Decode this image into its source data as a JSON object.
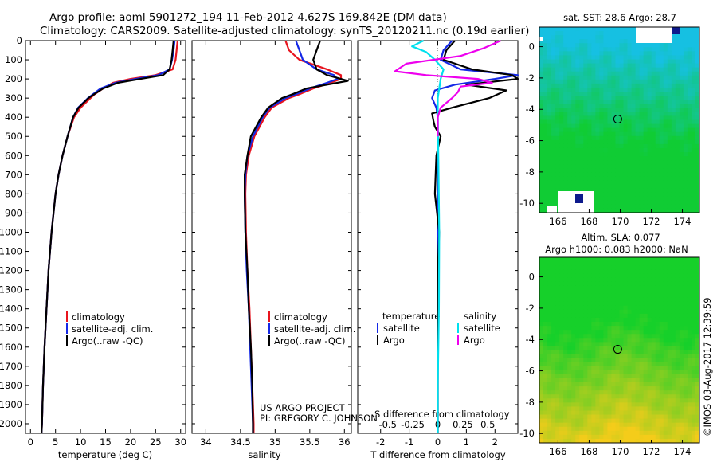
{
  "titles": {
    "line1": "Argo profile: aoml 5901272_194 11-Feb-2012 4.627S 169.842E (DM data)",
    "line2": "Climatology: CARS2009. Satellite-adjusted climatology: synTS_20120211.nc (0.19d earlier)"
  },
  "credits": {
    "project": "US ARGO PROJECT",
    "pi": "PI: GREGORY C. JOHNSON",
    "stamp": "©IMOS 03-Aug-2017 12:39:59"
  },
  "colors": {
    "climatology": "#e8141e",
    "satellite": "#1428e6",
    "argo": "#000000",
    "sat_s": "#00e0ee",
    "argo_s": "#ee00ee"
  },
  "chart_data": [
    {
      "id": "temperature",
      "type": "line",
      "xlabel": "temperature (deg C)",
      "ylabel": "",
      "xlim": [
        -1,
        31
      ],
      "ylim": [
        2050,
        0
      ],
      "xticks": [
        0,
        5,
        10,
        15,
        20,
        25,
        30
      ],
      "xtick_labels": [
        "0",
        "5",
        "10",
        "15",
        "20",
        "25",
        "30"
      ],
      "yticks": [
        0,
        100,
        200,
        300,
        400,
        500,
        600,
        700,
        800,
        900,
        1000,
        1100,
        1200,
        1300,
        1400,
        1500,
        1600,
        1700,
        1800,
        1900,
        2000
      ],
      "legend": [
        "climatology",
        "satellite-adj. clim.",
        "Argo(..raw -QC)"
      ],
      "series": [
        {
          "name": "climatology",
          "color": "#e8141e",
          "depth": [
            0,
            50,
            100,
            150,
            180,
            200,
            220,
            250,
            280,
            300,
            350,
            400,
            500,
            600,
            700,
            800,
            1000,
            1200,
            1400,
            1600,
            1800,
            2000,
            2050
          ],
          "values": [
            29.4,
            29.2,
            29,
            28.4,
            25,
            20,
            16.5,
            14.5,
            12.8,
            12,
            10,
            8.7,
            7.4,
            6.4,
            5.6,
            5,
            4.2,
            3.6,
            3.2,
            2.8,
            2.5,
            2.3,
            2.2
          ]
        },
        {
          "name": "satellite-adj. clim.",
          "color": "#1428e6",
          "depth": [
            0,
            50,
            100,
            150,
            180,
            200,
            220,
            250,
            280,
            300,
            350,
            400,
            500,
            600,
            700,
            800,
            1000,
            1200,
            1400,
            1600,
            1800,
            2000,
            2050
          ],
          "values": [
            28.8,
            28.6,
            28.3,
            27.8,
            25.5,
            21,
            17,
            14,
            12.5,
            11.5,
            9.5,
            8.5,
            7.4,
            6.4,
            5.6,
            5,
            4.2,
            3.6,
            3.2,
            2.8,
            2.5,
            2.3,
            2.2
          ]
        },
        {
          "name": "Argo(..raw -QC)",
          "color": "#000000",
          "depth": [
            0,
            50,
            100,
            150,
            180,
            200,
            220,
            250,
            280,
            300,
            350,
            400,
            500,
            600,
            700,
            800,
            1000,
            1200,
            1400,
            1600,
            1800,
            2000,
            2050
          ],
          "values": [
            28.6,
            28.4,
            28.2,
            27.8,
            26.5,
            22,
            17.5,
            14.5,
            12.7,
            11.6,
            9.6,
            8.5,
            7.4,
            6.4,
            5.6,
            5,
            4.2,
            3.6,
            3.2,
            2.8,
            2.5,
            2.3,
            2.2
          ]
        }
      ]
    },
    {
      "id": "salinity",
      "type": "line",
      "xlabel": "salinity",
      "ylabel": "",
      "xlim": [
        33.8,
        36.1
      ],
      "ylim": [
        2050,
        0
      ],
      "xticks": [
        34,
        34.5,
        35,
        35.5,
        36
      ],
      "xtick_labels": [
        "34",
        "34.5",
        "35",
        "35.5",
        "36"
      ],
      "legend": [
        "climatology",
        "satellite-adj. clim.",
        "Argo(..raw -QC)"
      ],
      "series": [
        {
          "name": "climatology",
          "color": "#e8141e",
          "depth": [
            0,
            50,
            100,
            150,
            180,
            200,
            220,
            250,
            280,
            300,
            350,
            400,
            500,
            600,
            700,
            800,
            1000,
            1200,
            1400,
            1600,
            1800,
            2000,
            2050
          ],
          "values": [
            35.15,
            35.2,
            35.35,
            35.75,
            35.95,
            35.95,
            35.8,
            35.55,
            35.35,
            35.2,
            34.95,
            34.85,
            34.7,
            34.62,
            34.58,
            34.57,
            34.58,
            34.6,
            34.63,
            34.65,
            34.67,
            34.69,
            34.69
          ]
        },
        {
          "name": "satellite-adj. clim.",
          "color": "#1428e6",
          "depth": [
            0,
            50,
            100,
            150,
            180,
            200,
            220,
            250,
            280,
            300,
            350,
            400,
            500,
            600,
            700,
            800,
            1000,
            1200,
            1400,
            1600,
            1800,
            2000,
            2050
          ],
          "values": [
            35.3,
            35.35,
            35.4,
            35.6,
            35.85,
            35.9,
            35.75,
            35.5,
            35.3,
            35.15,
            34.92,
            34.82,
            34.68,
            34.6,
            34.57,
            34.56,
            34.57,
            34.59,
            34.62,
            34.64,
            34.66,
            34.68,
            34.68
          ]
        },
        {
          "name": "Argo(..raw -QC)",
          "color": "#000000",
          "depth": [
            0,
            50,
            100,
            150,
            180,
            200,
            210,
            220,
            250,
            280,
            300,
            350,
            400,
            500,
            600,
            700,
            800,
            1000,
            1200,
            1400,
            1600,
            1800,
            2000,
            2050
          ],
          "values": [
            35.65,
            35.6,
            35.55,
            35.6,
            35.75,
            35.95,
            36.05,
            35.9,
            35.45,
            35.25,
            35.1,
            34.9,
            34.8,
            34.65,
            34.6,
            34.56,
            34.56,
            34.57,
            34.6,
            34.62,
            34.65,
            34.67,
            34.68,
            34.68
          ]
        }
      ]
    },
    {
      "id": "difference",
      "type": "line",
      "xlabel": "T difference from climatology",
      "top_xlabel": "S difference from climatology",
      "xlim": [
        -2.8,
        2.8
      ],
      "ylim": [
        2050,
        0
      ],
      "xticks": [
        -2,
        -1,
        0,
        1,
        2
      ],
      "xtick_labels": [
        "-2",
        "-1",
        "0",
        "1",
        "2"
      ],
      "top_xticks": [
        -1.75,
        -0.875,
        0,
        0.875,
        1.75
      ],
      "top_xtick_labels": [
        "-0.5",
        "-0.25",
        "0",
        "0.25",
        "0.5"
      ],
      "legend_headers": [
        "temperature",
        "salinity"
      ],
      "legend": [
        "satellite",
        "Argo",
        "satellite",
        "Argo"
      ],
      "series": [
        {
          "name": "temperature satellite",
          "color": "#1428e6",
          "depth": [
            0,
            50,
            100,
            150,
            180,
            200,
            230,
            260,
            300,
            350,
            400,
            450,
            500,
            800,
            1200,
            1600,
            2000,
            2050
          ],
          "values": [
            0.5,
            0.2,
            0.1,
            0.8,
            2.8,
            2.0,
            0.6,
            -0.1,
            -0.2,
            -0.05,
            0,
            0,
            0,
            0,
            0,
            0,
            0,
            0
          ]
        },
        {
          "name": "temperature Argo",
          "color": "#000000",
          "depth": [
            0,
            50,
            100,
            150,
            180,
            200,
            230,
            260,
            300,
            350,
            380,
            420,
            450,
            500,
            600,
            800,
            1000,
            1200,
            1600,
            2000,
            2050
          ],
          "values": [
            0.6,
            0.3,
            0.2,
            1.2,
            2.6,
            2.8,
            1.0,
            2.4,
            1.8,
            0.5,
            -0.2,
            -0.15,
            -0.1,
            0.1,
            -0.05,
            -0.1,
            0.05,
            0,
            0,
            0,
            0
          ]
        },
        {
          "name": "salinity satellite",
          "color": "#00e0ee",
          "depth": [
            0,
            30,
            60,
            100,
            150,
            200,
            250,
            300,
            400,
            600,
            1000,
            1400,
            1800,
            2050
          ],
          "values": [
            -0.5,
            -0.9,
            -0.4,
            -0.1,
            0.2,
            0.1,
            0.05,
            0,
            0,
            0.02,
            0.05,
            0.04,
            0,
            0
          ]
        },
        {
          "name": "salinity Argo",
          "color": "#ee00ee",
          "depth": [
            0,
            40,
            80,
            120,
            160,
            180,
            200,
            220,
            240,
            270,
            300,
            350,
            400,
            450,
            500
          ],
          "values": [
            2.2,
            1.6,
            0.8,
            -1.1,
            -1.5,
            -0.4,
            1.4,
            1.9,
            0.8,
            0.7,
            0.5,
            0.1,
            0,
            0,
            0
          ]
        }
      ]
    },
    {
      "id": "sst_map",
      "type": "heatmap",
      "title": "sat. SST: 28.6 Argo: 28.7",
      "xlim": [
        164.8,
        175.1
      ],
      "ylim": [
        -10.6,
        1.25
      ],
      "xticks": [
        166,
        168,
        170,
        172,
        174
      ],
      "xtick_labels": [
        "166",
        "168",
        "170",
        "172",
        "174"
      ],
      "yticks": [
        0,
        -2,
        -4,
        -6,
        -8,
        -10
      ],
      "ytick_labels": [
        "0",
        "-2",
        "-4",
        "-6",
        "-8",
        "-10"
      ],
      "argo_position": [
        169.842,
        -4.627
      ],
      "color_low": "#10cc34",
      "color_high": "#16c0e2"
    },
    {
      "id": "sla_map",
      "type": "heatmap",
      "title": "Altim. SLA: 0.077",
      "subtitle": "Argo h1000: 0.083 h2000: NaN",
      "xlim": [
        164.8,
        175.1
      ],
      "ylim": [
        -10.6,
        1.25
      ],
      "xticks": [
        166,
        168,
        170,
        172,
        174
      ],
      "xtick_labels": [
        "166",
        "168",
        "170",
        "172",
        "174"
      ],
      "yticks": [
        0,
        -2,
        -4,
        -6,
        -8,
        -10
      ],
      "ytick_labels": [
        "0",
        "-2",
        "-4",
        "-6",
        "-8",
        "-10"
      ],
      "argo_position": [
        169.842,
        -4.627
      ],
      "color_low": "#f4cc1a",
      "color_high": "#16d02a"
    }
  ]
}
